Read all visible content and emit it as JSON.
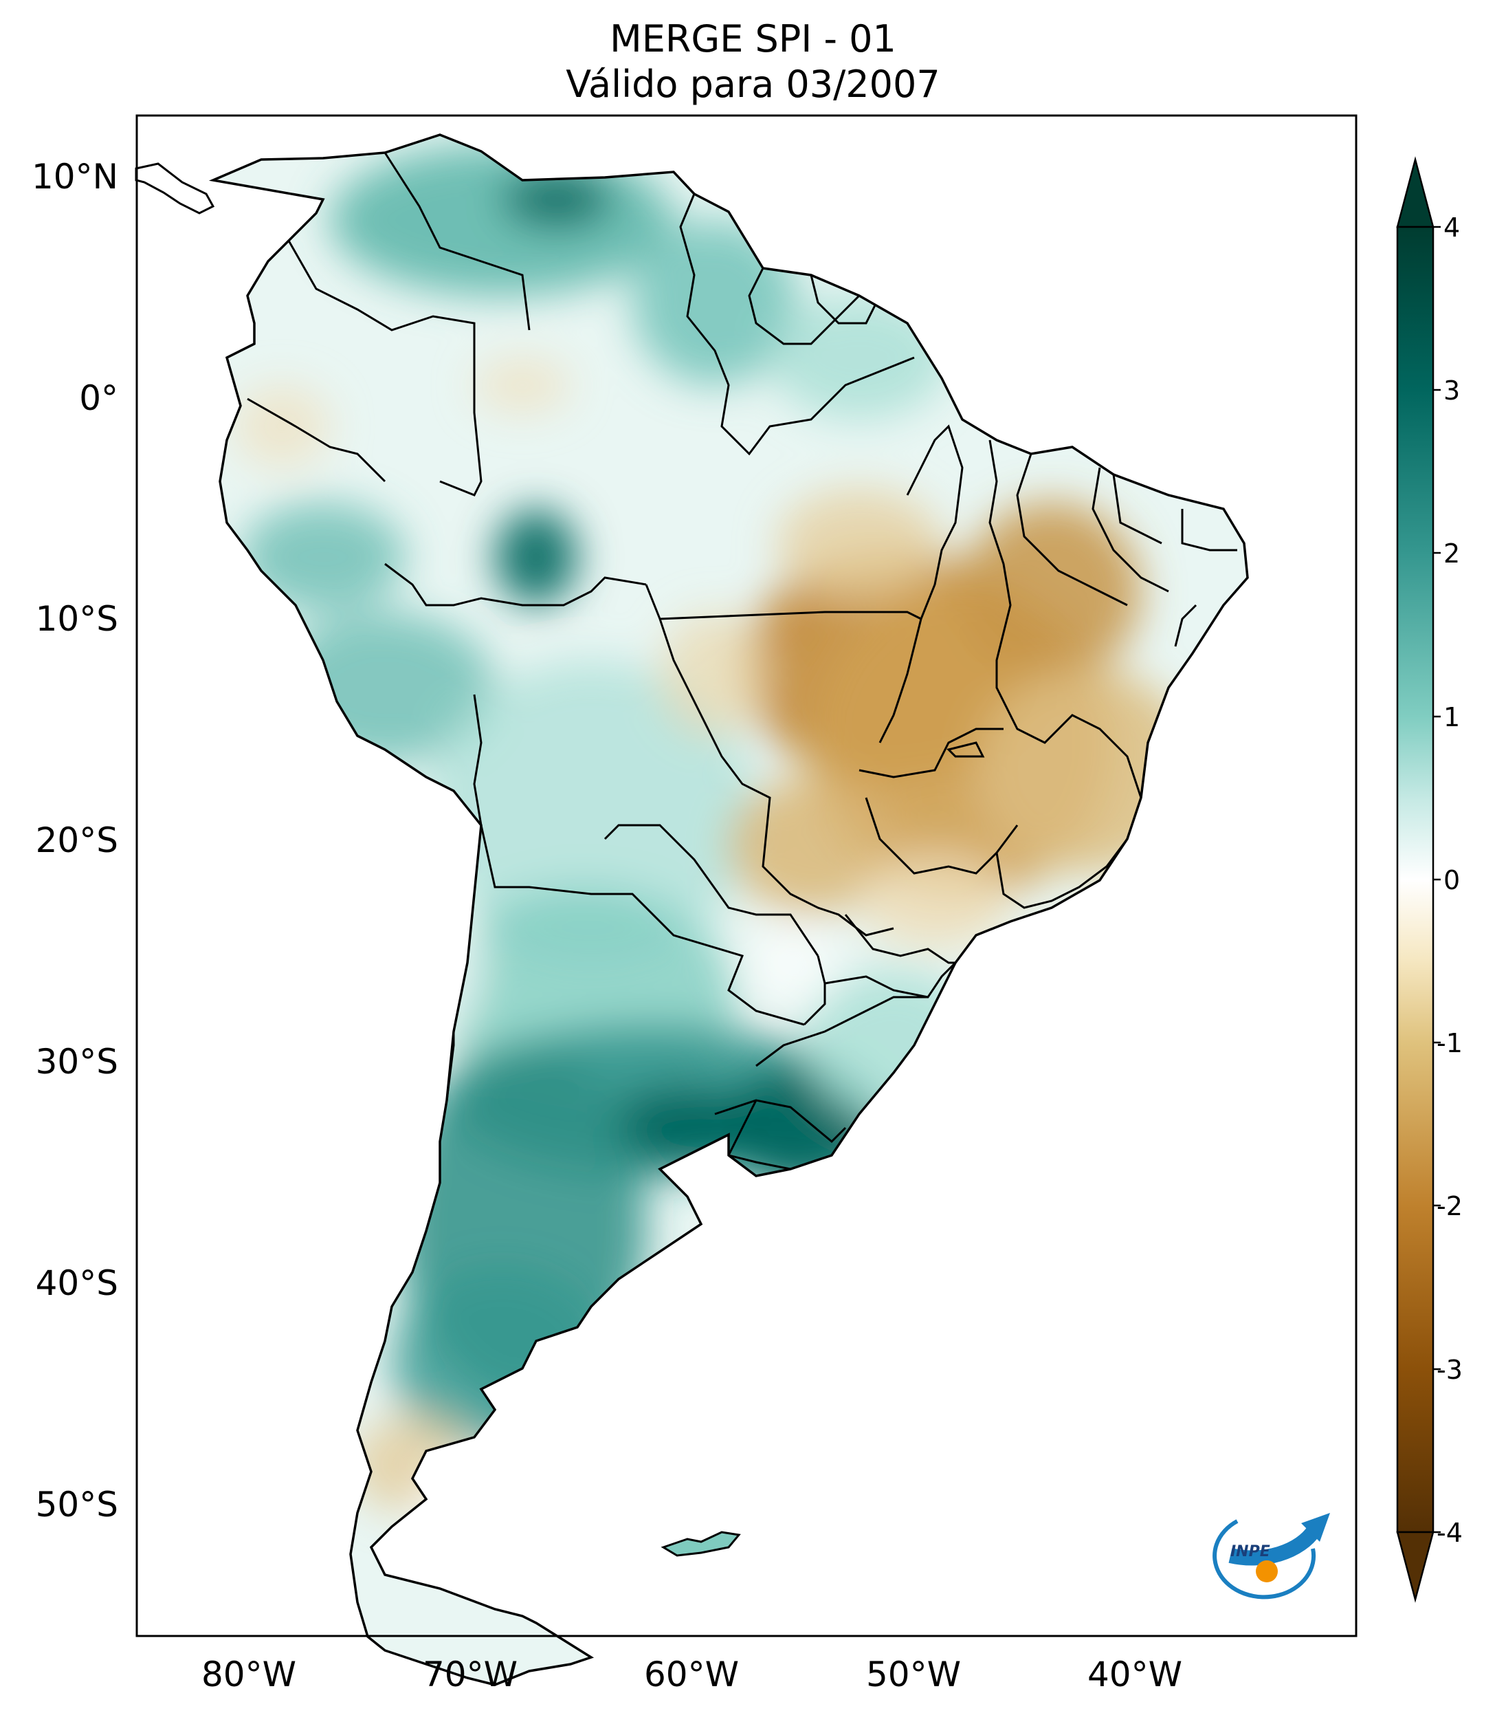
{
  "title": {
    "line1": "MERGE   SPI - 01",
    "line2": "Válido para 03/2007"
  },
  "map": {
    "lat_ticks": [
      "10°N",
      "0°",
      "10°S",
      "20°S",
      "30°S",
      "40°S",
      "50°S"
    ],
    "lon_ticks": [
      "80°W",
      "70°W",
      "60°W",
      "50°W",
      "40°W"
    ]
  },
  "colorbar": {
    "ticks": [
      "4",
      "3",
      "2",
      "1",
      "0",
      "-1",
      "-2",
      "-3",
      "-4"
    ],
    "colors": {
      "strong_wet": "#003c30",
      "wet": "#01665e",
      "moderate_wet": "#35978f",
      "light_wet": "#80cdc1",
      "very_light_wet": "#c7eae5",
      "neutral": "#ffffff",
      "very_light_dry": "#f6e8c3",
      "light_dry": "#dfc27d",
      "moderate_dry": "#bf812d",
      "dry": "#8c510a",
      "strong_dry": "#543005"
    }
  },
  "logo": {
    "text": "INPE"
  }
}
